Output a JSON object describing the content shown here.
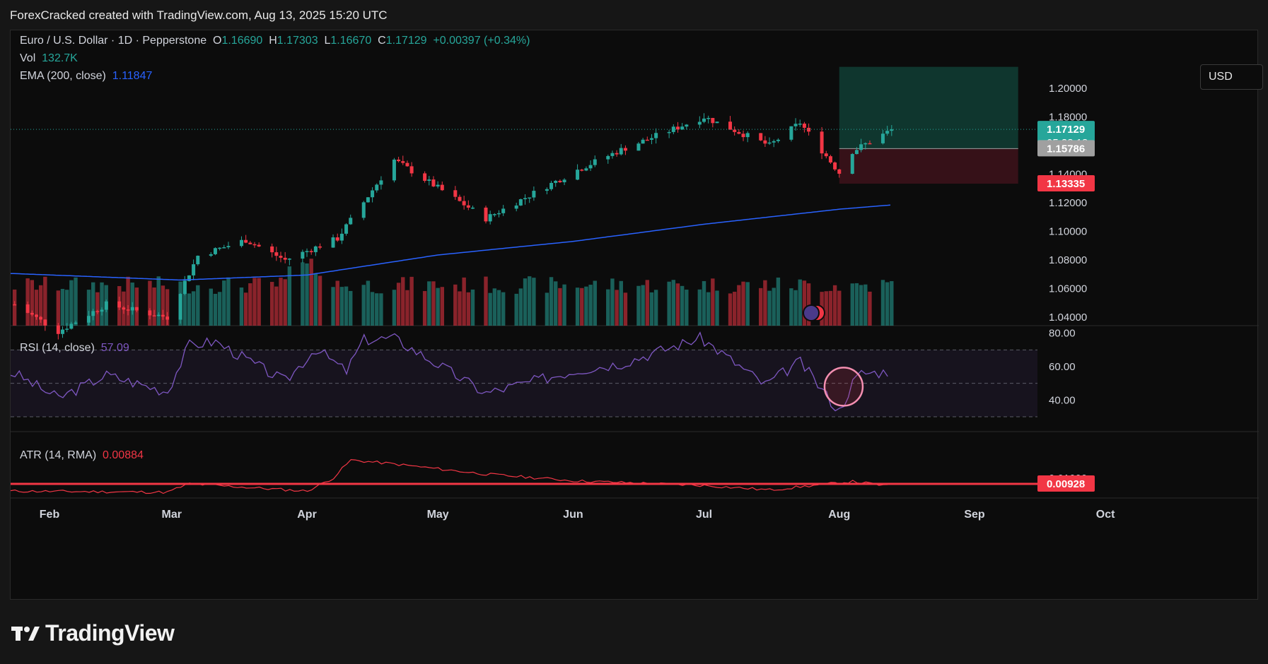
{
  "header": {
    "caption": "ForexCracked created with TradingView.com, Aug 13, 2025 15:20 UTC"
  },
  "legend": {
    "symbol": "Euro / U.S. Dollar · 1D · Pepperstone",
    "o_label": "O",
    "o": "1.16690",
    "h_label": "H",
    "h": "1.17303",
    "l_label": "L",
    "l": "1.16670",
    "c_label": "C",
    "c": "1.17129",
    "change": "+0.00397 (+0.34%)",
    "vol_label": "Vol",
    "vol": "132.7K",
    "ema_label": "EMA (200, close)",
    "ema": "1.11847"
  },
  "currency_button": "USD",
  "price_axis": {
    "ticks": [
      "1.20000",
      "1.18000",
      "1.14000",
      "1.12000",
      "1.10000",
      "1.08000",
      "1.06000",
      "1.04000"
    ],
    "tick_values": [
      1.2,
      1.18,
      1.14,
      1.12,
      1.1,
      1.08,
      1.06,
      1.04
    ],
    "last_price": "1.17129",
    "countdown": "05:38:18",
    "entry_price": "1.15786",
    "stop_price": "1.13335"
  },
  "rsi": {
    "label": "RSI (14, close)",
    "value": "57.09",
    "ticks": [
      "80.00",
      "60.00",
      "40.00"
    ],
    "tick_values": [
      80,
      60,
      40
    ],
    "upper_band": 70,
    "lower_band": 30,
    "mid": 50
  },
  "atr": {
    "label": "ATR (14, RMA)",
    "value": "0.00884",
    "hline_label": "0.00928",
    "hidden_tick": "0.01000"
  },
  "time_axis": {
    "labels": [
      "Feb",
      "Mar",
      "Apr",
      "May",
      "Jun",
      "Jul",
      "Aug",
      "Sep",
      "Oct"
    ]
  },
  "brand": "TradingView",
  "colors": {
    "up": "#26a69a",
    "down": "#f23645",
    "ema": "#2962ff",
    "rsi": "#7e57c2",
    "atr": "#f23645",
    "hline": "#f23645",
    "target_zone": "#0f3b32",
    "stop_zone": "#3b1219"
  },
  "chart_data": {
    "type": "candlestick",
    "title": "Euro / U.S. Dollar · 1D · Pepperstone",
    "date_range": [
      "2025-01-24",
      "2025-08-13"
    ],
    "price_range": [
      1.03,
      1.215
    ],
    "ohlc_anchors": [
      {
        "date": "2025-01-24",
        "price": 1.049
      },
      {
        "date": "2025-02-03",
        "price": 1.03
      },
      {
        "date": "2025-02-14",
        "price": 1.049
      },
      {
        "date": "2025-02-28",
        "price": 1.04
      },
      {
        "date": "2025-03-07",
        "price": 1.083
      },
      {
        "date": "2025-03-18",
        "price": 1.094
      },
      {
        "date": "2025-03-27",
        "price": 1.08
      },
      {
        "date": "2025-04-08",
        "price": 1.095
      },
      {
        "date": "2025-04-21",
        "price": 1.15
      },
      {
        "date": "2025-05-12",
        "price": 1.109
      },
      {
        "date": "2025-06-02",
        "price": 1.143
      },
      {
        "date": "2025-06-12",
        "price": 1.157
      },
      {
        "date": "2025-07-01",
        "price": 1.18
      },
      {
        "date": "2025-07-16",
        "price": 1.16
      },
      {
        "date": "2025-07-23",
        "price": 1.176
      },
      {
        "date": "2025-08-01",
        "price": 1.141
      },
      {
        "date": "2025-08-04",
        "price": 1.156
      },
      {
        "date": "2025-08-13",
        "price": 1.171
      }
    ],
    "ema_200": [
      {
        "date": "2025-01-24",
        "value": 1.0705
      },
      {
        "date": "2025-03-03",
        "value": 1.066
      },
      {
        "date": "2025-04-01",
        "value": 1.0695
      },
      {
        "date": "2025-05-01",
        "value": 1.0835
      },
      {
        "date": "2025-06-01",
        "value": 1.093
      },
      {
        "date": "2025-07-01",
        "value": 1.105
      },
      {
        "date": "2025-08-01",
        "value": 1.1155
      },
      {
        "date": "2025-08-13",
        "value": 1.1185
      }
    ],
    "rsi_14": [
      {
        "date": "2025-01-24",
        "value": 56
      },
      {
        "date": "2025-02-03",
        "value": 41
      },
      {
        "date": "2025-02-14",
        "value": 55
      },
      {
        "date": "2025-02-28",
        "value": 45
      },
      {
        "date": "2025-03-05",
        "value": 73
      },
      {
        "date": "2025-03-11",
        "value": 75
      },
      {
        "date": "2025-03-27",
        "value": 51
      },
      {
        "date": "2025-04-03",
        "value": 71
      },
      {
        "date": "2025-04-10",
        "value": 57
      },
      {
        "date": "2025-04-14",
        "value": 76
      },
      {
        "date": "2025-04-21",
        "value": 77
      },
      {
        "date": "2025-05-12",
        "value": 44
      },
      {
        "date": "2025-06-02",
        "value": 58
      },
      {
        "date": "2025-06-12",
        "value": 62
      },
      {
        "date": "2025-06-30",
        "value": 77
      },
      {
        "date": "2025-07-02",
        "value": 74
      },
      {
        "date": "2025-07-15",
        "value": 49
      },
      {
        "date": "2025-07-23",
        "value": 63
      },
      {
        "date": "2025-08-01",
        "value": 33
      },
      {
        "date": "2025-08-04",
        "value": 50
      },
      {
        "date": "2025-08-06",
        "value": 56
      },
      {
        "date": "2025-08-13",
        "value": 57.09
      }
    ],
    "atr_14": [
      {
        "date": "2025-01-24",
        "value": 0.008
      },
      {
        "date": "2025-02-28",
        "value": 0.0078
      },
      {
        "date": "2025-03-05",
        "value": 0.0093
      },
      {
        "date": "2025-04-01",
        "value": 0.008
      },
      {
        "date": "2025-04-07",
        "value": 0.0103
      },
      {
        "date": "2025-04-11",
        "value": 0.0135
      },
      {
        "date": "2025-04-21",
        "value": 0.0128
      },
      {
        "date": "2025-05-12",
        "value": 0.011
      },
      {
        "date": "2025-06-02",
        "value": 0.0098
      },
      {
        "date": "2025-07-01",
        "value": 0.009
      },
      {
        "date": "2025-07-16",
        "value": 0.0082
      },
      {
        "date": "2025-08-04",
        "value": 0.0097
      },
      {
        "date": "2025-08-13",
        "value": 0.00884
      }
    ],
    "atr_hline": 0.00928,
    "position": {
      "type": "long",
      "entry": 1.15786,
      "stop": 1.13335,
      "target_zone_top": 1.215,
      "start_date": "2025-08-01",
      "end_date": "2025-09-11"
    },
    "rsi_marked_circle": {
      "date": "2025-08-02",
      "value": 48
    },
    "x_tick_labels": [
      "Feb",
      "Mar",
      "Apr",
      "May",
      "Jun",
      "Jul",
      "Aug",
      "Sep",
      "Oct"
    ]
  }
}
